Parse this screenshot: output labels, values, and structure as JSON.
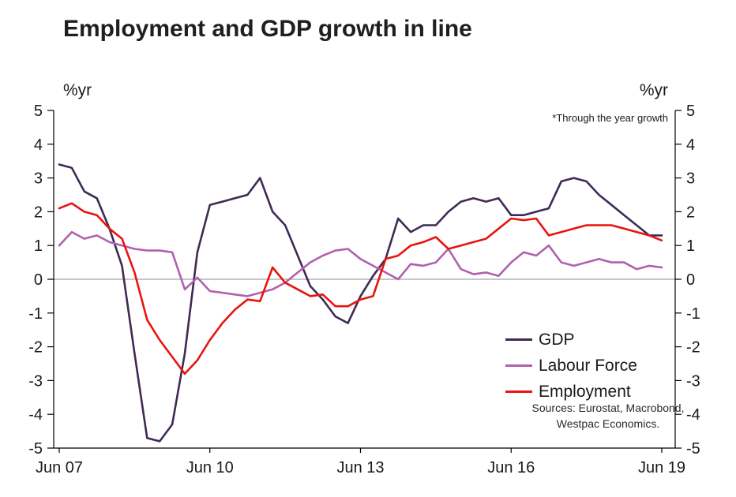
{
  "page_title": "Employment and GDP growth in line",
  "axis": {
    "left_unit": "%yr",
    "right_unit": "%yr"
  },
  "annotation": "*Through the year growth",
  "notes": {
    "sources_line1": "Sources: Eurostat, Macrobond,",
    "sources_line2": "Westpac Economics."
  },
  "chart_data": {
    "type": "line",
    "title": "Employment and GDP growth in line",
    "frequency": "quarterly",
    "x_start": "Jun 07",
    "x_end": "Jun 19",
    "x_tick_labels": [
      "Jun 07",
      "Jun 10",
      "Jun 13",
      "Jun 16",
      "Jun 19"
    ],
    "x_tick_indices": [
      0,
      12,
      24,
      36,
      48
    ],
    "ylabel": "%yr",
    "ylim": [
      -5,
      5
    ],
    "y_ticks": [
      5,
      4,
      3,
      2,
      1,
      0,
      -1,
      -2,
      -3,
      -4,
      -5
    ],
    "grid": false,
    "zero_line": true,
    "legend_position": "inside-right",
    "series": [
      {
        "name": "GDP",
        "color": "#3f2a54",
        "values": [
          3.4,
          3.3,
          2.6,
          2.4,
          1.5,
          0.4,
          -2.2,
          -4.7,
          -4.8,
          -4.3,
          -2.2,
          0.8,
          2.2,
          2.3,
          2.4,
          2.5,
          3.0,
          2.0,
          1.6,
          0.7,
          -0.2,
          -0.6,
          -1.1,
          -1.3,
          -0.5,
          0.1,
          0.6,
          1.8,
          1.4,
          1.6,
          1.6,
          2.0,
          2.3,
          2.4,
          2.3,
          2.4,
          1.9,
          1.9,
          2.0,
          2.1,
          2.9,
          3.0,
          2.9,
          2.5,
          2.2,
          1.9,
          1.6,
          1.3,
          1.3
        ]
      },
      {
        "name": "Labour Force",
        "color": "#b160ae",
        "values": [
          1.0,
          1.4,
          1.2,
          1.3,
          1.1,
          1.0,
          0.9,
          0.85,
          0.85,
          0.8,
          -0.3,
          0.05,
          -0.35,
          -0.4,
          -0.45,
          -0.5,
          -0.4,
          -0.3,
          -0.1,
          0.2,
          0.5,
          0.7,
          0.85,
          0.9,
          0.6,
          0.4,
          0.2,
          0.0,
          0.45,
          0.4,
          0.5,
          0.9,
          0.3,
          0.15,
          0.2,
          0.1,
          0.5,
          0.8,
          0.7,
          1.0,
          0.5,
          0.4,
          0.5,
          0.6,
          0.5,
          0.5,
          0.3,
          0.4,
          0.35
        ]
      },
      {
        "name": "Employment",
        "color": "#e8140e",
        "values": [
          2.1,
          2.25,
          2.0,
          1.9,
          1.5,
          1.2,
          0.2,
          -1.2,
          -1.8,
          -2.3,
          -2.8,
          -2.4,
          -1.8,
          -1.3,
          -0.9,
          -0.6,
          -0.65,
          0.35,
          -0.1,
          -0.3,
          -0.5,
          -0.45,
          -0.8,
          -0.8,
          -0.6,
          -0.5,
          0.6,
          0.7,
          1.0,
          1.1,
          1.25,
          0.9,
          1.0,
          1.1,
          1.2,
          1.5,
          1.8,
          1.75,
          1.8,
          1.3,
          1.4,
          1.5,
          1.6,
          1.6,
          1.6,
          1.5,
          1.4,
          1.3,
          1.15
        ]
      }
    ]
  }
}
